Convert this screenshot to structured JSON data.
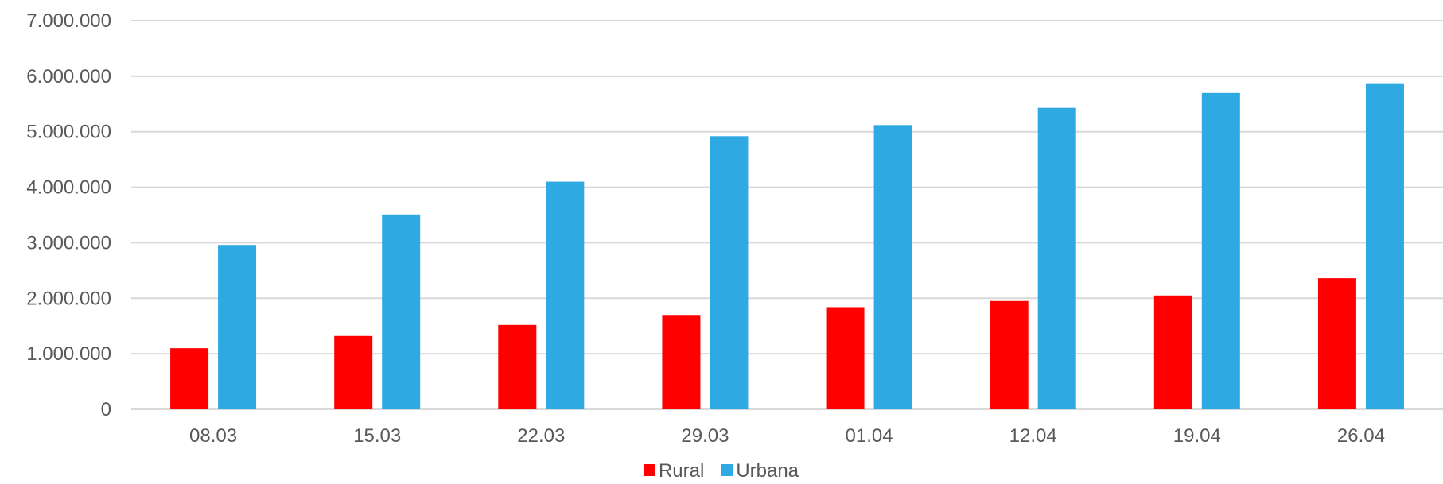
{
  "chart_data": {
    "type": "bar",
    "categories": [
      "08.03",
      "15.03",
      "22.03",
      "29.03",
      "01.04",
      "12.04",
      "19.04",
      "26.04"
    ],
    "series": [
      {
        "name": "Rural",
        "color": "#ff0000",
        "values": [
          1100000,
          1320000,
          1520000,
          1700000,
          1840000,
          1950000,
          2050000,
          2360000
        ]
      },
      {
        "name": "Urbana",
        "color": "#2ea9e1",
        "values": [
          2960000,
          3510000,
          4100000,
          4920000,
          5120000,
          5430000,
          5700000,
          5860000
        ]
      }
    ],
    "yticks": [
      "0",
      "1.000.000",
      "2.000.000",
      "3.000.000",
      "4.000.000",
      "5.000.000",
      "6.000.000",
      "7.000.000"
    ],
    "ylim": [
      0,
      7000000
    ],
    "grid": true,
    "legend_position": "bottom"
  }
}
